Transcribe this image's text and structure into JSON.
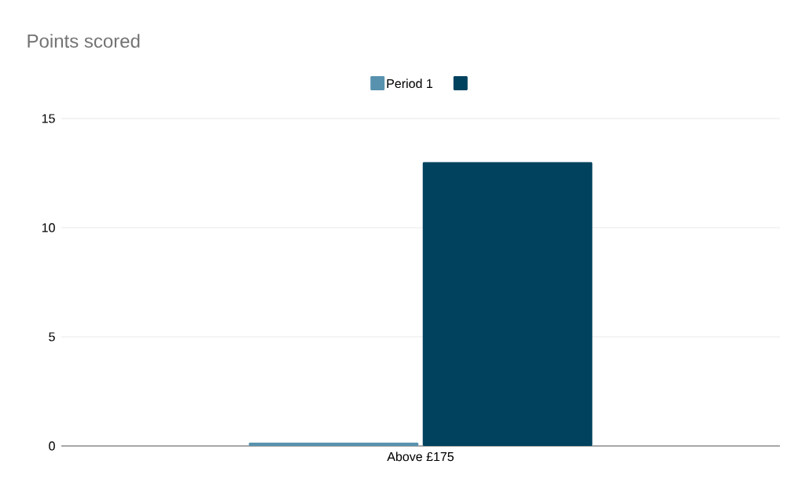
{
  "chart_data": {
    "type": "bar",
    "title": "Points scored",
    "categories": [
      "Above £175"
    ],
    "series": [
      {
        "name": "Period 1",
        "color": "#5791ad",
        "values": [
          0.15
        ]
      },
      {
        "color": "#01425e",
        "values": [
          13
        ]
      }
    ],
    "ylim": [
      0,
      15
    ],
    "yticks": [
      0,
      5,
      10,
      15
    ],
    "grid": "y",
    "legend": "top"
  }
}
